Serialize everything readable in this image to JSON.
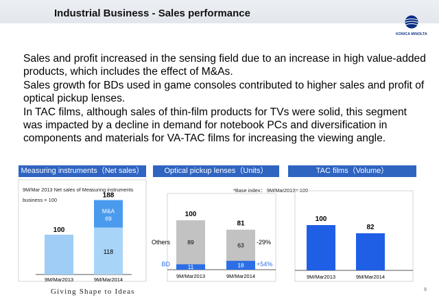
{
  "header": {
    "title": "Industrial Business - Sales performance"
  },
  "logo": {
    "brand": "KONICA MINOLTA"
  },
  "body_lines": [
    "Sales and profit increased in the sensing field due to an increase in high value-added",
    "products, which includes the effect of M&As.",
    "Sales growth for BDs used in game consoles contributed to higher sales and profit of",
    "optical pickup lenses.",
    "In TAC films, although sales of thin-film products for TVs were solid, this segment",
    "was impacted by a decline in demand for notebook PCs and diversification in",
    "components and materials for VA-TAC films for increasing the viewing angle."
  ],
  "footer": {
    "tagline": "Giving Shape to Ideas",
    "page_number": "9"
  },
  "colors": {
    "header_blue": "#2f64c1",
    "light_blue": "#9fcdf5",
    "medium_blue": "#4a9bee",
    "bright_blue": "#1f5fe6",
    "gray": "#c2c2c2",
    "bd_blue": "#2b6ee6"
  },
  "chart_data": [
    {
      "type": "bar",
      "panel_title": "Measuring instruments（Net sales）",
      "note_lines": [
        "9M/Mar 2013 Net sales of Measuring instruments",
        "business = 100"
      ],
      "categories": [
        "9M/Mar2013",
        "9M/Mar2014"
      ],
      "series": [
        {
          "values": [
            100,
            118
          ]
        },
        {
          "name": "M&A",
          "values": [
            null,
            69
          ]
        }
      ],
      "data_labels": [
        "100",
        "118",
        "69"
      ],
      "totals": [
        null,
        188
      ],
      "total_labels": [
        "",
        "188"
      ],
      "ylim": [
        0,
        200
      ]
    },
    {
      "type": "bar",
      "panel_title": "Optical pickup lenses（Units）",
      "note": "*Base index： 9M/Mar2013= 100",
      "categories": [
        "9M/Mar2013",
        "9M/Mar2014"
      ],
      "series": [
        {
          "name": "BD",
          "values": [
            11,
            18
          ]
        },
        {
          "name": "Others",
          "values": [
            89,
            63
          ]
        }
      ],
      "data_labels": [
        "11",
        "18",
        "89",
        "63"
      ],
      "totals": [
        100,
        81
      ],
      "total_labels": [
        "100",
        "81"
      ],
      "changes": {
        "Others": "-29%",
        "BD": "+54%"
      },
      "ylim": [
        0,
        110
      ]
    },
    {
      "type": "bar",
      "panel_title": "TAC films（Volume）",
      "categories": [
        "9M/Mar2013",
        "9M/Mar2014"
      ],
      "values": [
        100,
        82
      ],
      "value_labels": [
        "100",
        "82"
      ],
      "ylim": [
        0,
        120
      ]
    }
  ]
}
